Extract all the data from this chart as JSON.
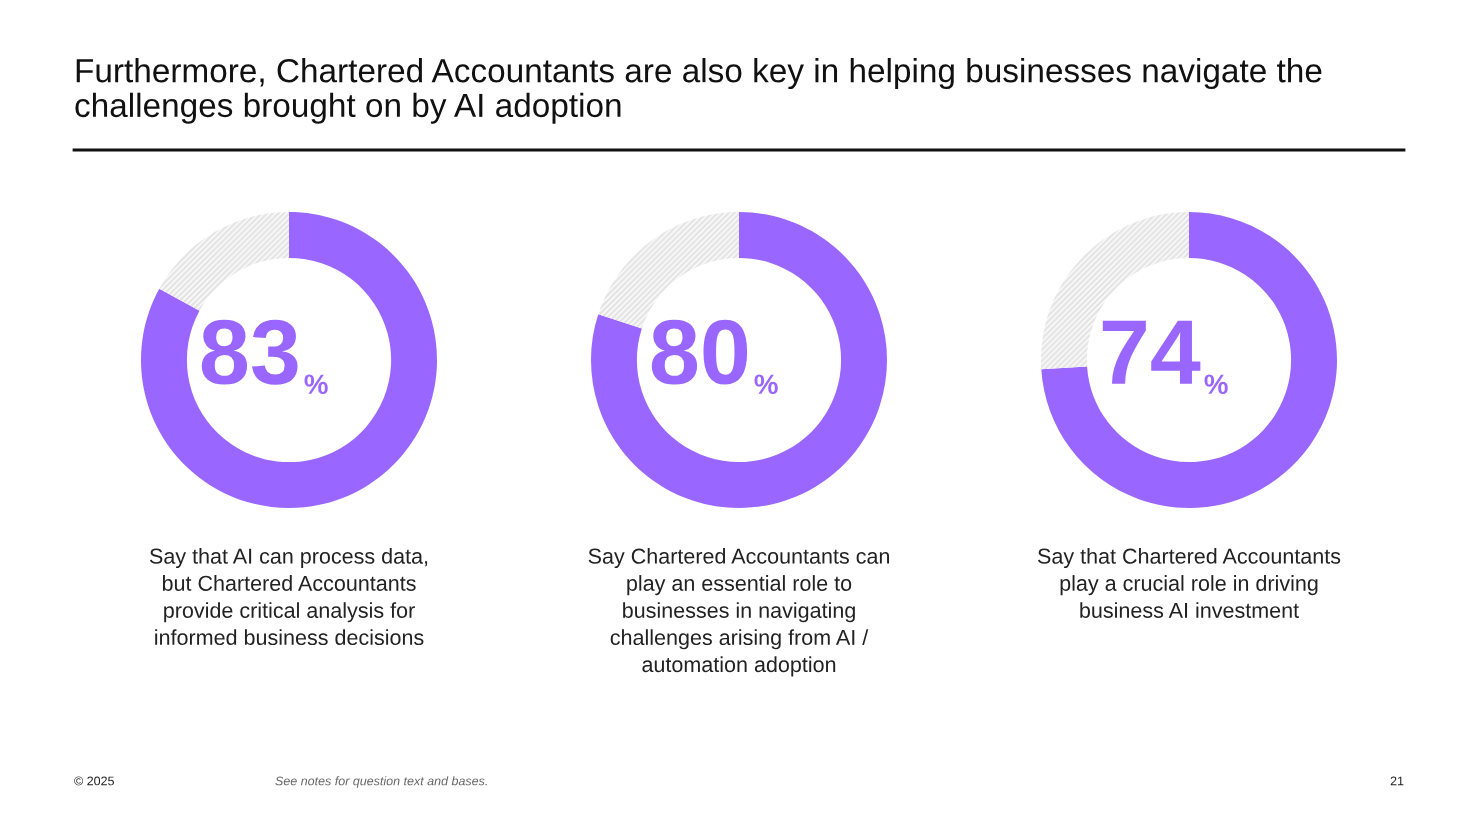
{
  "chart_data": [
    {
      "type": "donut",
      "title": "Furthermore, Chartered Accountants are also key in helping businesses navigate the challenges brought on by AI adoption",
      "categories": [
        null,
        null
      ],
      "values": [
        83,
        17
      ],
      "colors": [
        "#9966ff",
        "#e4e4e4"
      ],
      "value_labels": [
        "83%",
        null
      ],
      "annotations": [
        "Say that AI can process data, but Chartered Accountants provide critical analysis for informed business decisions",
        "© 2025",
        "See notes for question text and bases.",
        "21"
      ]
    },
    {
      "type": "donut",
      "categories": [
        null,
        null
      ],
      "values": [
        80,
        20
      ],
      "colors": [
        "#9966ff",
        "#e4e4e4"
      ],
      "value_labels": [
        "80%",
        null
      ],
      "annotations": [
        "Say Chartered Accountants can play an essential role to businesses in navigating challenges arising from AI / automation adoption"
      ]
    },
    {
      "type": "donut",
      "categories": [
        null,
        null
      ],
      "values": [
        74,
        26
      ],
      "colors": [
        "#9966ff",
        "#e4e4e4"
      ],
      "value_labels": [
        "74%",
        null
      ],
      "annotations": [
        "Say that Chartered Accountants play a crucial role in driving business AI investment"
      ]
    }
  ]
}
